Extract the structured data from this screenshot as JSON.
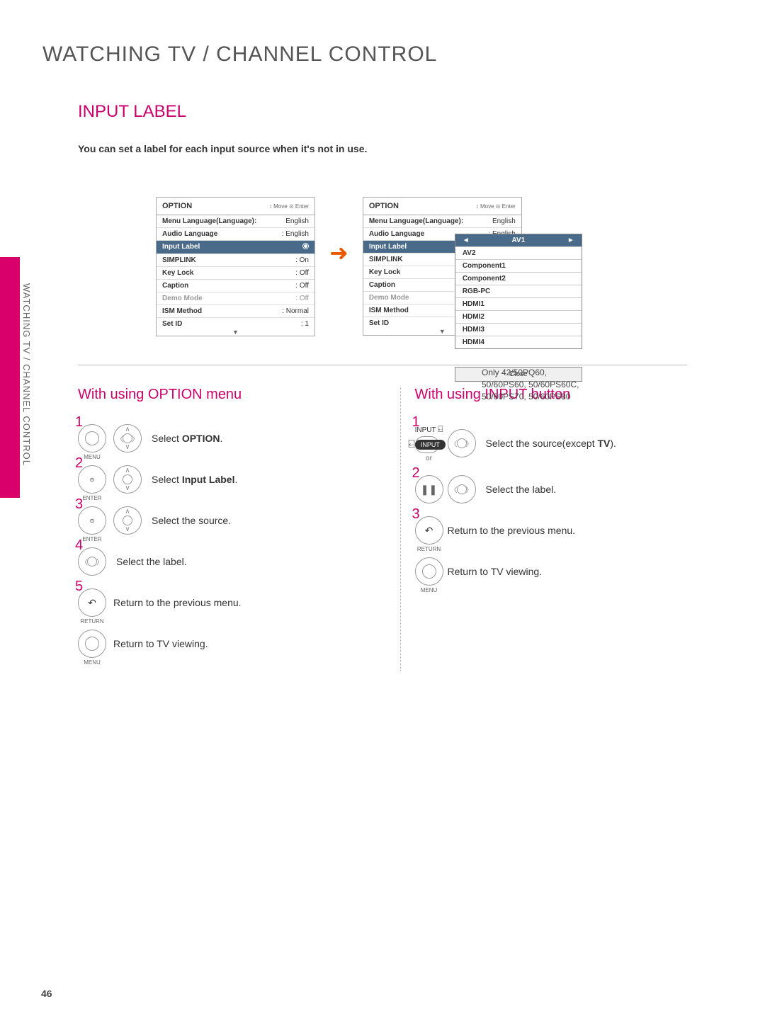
{
  "page_number": "46",
  "heading": "WATCHING TV / CHANNEL CONTROL",
  "section_title": "INPUT LABEL",
  "intro": "You can set a label for each input source when it's not in use.",
  "side_label": "WATCHING TV / CHANNEL CONTROL",
  "menu_left": {
    "title": "OPTION",
    "hints": "↕ Move   ⊙ Enter",
    "rows": [
      {
        "k": "Menu Language(Language):",
        "v": "English"
      },
      {
        "k": "Audio Language",
        "v": ": English"
      },
      {
        "k": "Input Label",
        "v": "●",
        "hl": true
      },
      {
        "k": "SIMPLINK",
        "v": ": On"
      },
      {
        "k": "Key Lock",
        "v": ": Off"
      },
      {
        "k": "Caption",
        "v": ": Off"
      },
      {
        "k": "Demo Mode",
        "v": ": Off",
        "gray": true
      },
      {
        "k": "ISM Method",
        "v": ": Normal"
      },
      {
        "k": "Set ID",
        "v": ": 1"
      }
    ]
  },
  "menu_right": {
    "title": "OPTION",
    "hints": "↕ Move   ⊙ Enter",
    "rows": [
      {
        "k": "Menu Language(Language):",
        "v": "English"
      },
      {
        "k": "Audio Language",
        "v": ": English"
      },
      {
        "k": "Input Label",
        "v": "",
        "hl": true
      },
      {
        "k": "SIMPLINK",
        "v": ""
      },
      {
        "k": "Key Lock",
        "v": ""
      },
      {
        "k": "Caption",
        "v": ""
      },
      {
        "k": "Demo Mode",
        "v": "",
        "gray": true
      },
      {
        "k": "ISM Method",
        "v": ""
      },
      {
        "k": "Set ID",
        "v": ""
      }
    ]
  },
  "popup_items": [
    "AV1",
    "AV2",
    "Component1",
    "Component2",
    "RGB-PC",
    "HDMI1",
    "HDMI2",
    "HDMI3",
    "HDMI4"
  ],
  "popup_selected": "AV1",
  "popup_close": "Close",
  "note_lines": [
    "Only 42/50PQ60,",
    "50/60PS60, 50/60PS60C,",
    "50/60PS70, 50/60PS80"
  ],
  "col_left_title": "With using OPTION menu",
  "col_right_title": "With using INPUT button",
  "steps_left": [
    {
      "n": "1",
      "btn": "MENU",
      "dpad": "full",
      "text_pre": "Select ",
      "text_bold": "OPTION",
      "text_post": "."
    },
    {
      "n": "2",
      "btn": "ENTER",
      "dpad": "ud",
      "text_pre": "Select ",
      "text_bold": "Input Label",
      "text_post": "."
    },
    {
      "n": "3",
      "btn": "ENTER",
      "dpad": "ud",
      "text_pre": "Select the source.",
      "text_bold": "",
      "text_post": ""
    },
    {
      "n": "4",
      "btn": "",
      "dpad": "lr",
      "text_pre": "Select the label.",
      "text_bold": "",
      "text_post": ""
    },
    {
      "n": "5",
      "btn": "RETURN",
      "dpad": "",
      "text_pre": "Return to the previous menu.",
      "text_bold": "",
      "text_post": ""
    },
    {
      "n": "",
      "btn": "MENU",
      "dpad": "",
      "text_pre": "Return to TV viewing.",
      "text_bold": "",
      "text_post": ""
    }
  ],
  "steps_right": [
    {
      "n": "1",
      "text_pre": "Select the source(except ",
      "text_bold": "TV",
      "text_post": ")."
    },
    {
      "n": "2",
      "text_pre": "Select the label.",
      "text_bold": "",
      "text_post": ""
    },
    {
      "n": "3",
      "btn": "RETURN",
      "text_pre": "Return to the previous menu.",
      "text_bold": "",
      "text_post": ""
    },
    {
      "n": "",
      "btn": "MENU",
      "text_pre": "Return to TV viewing.",
      "text_bold": "",
      "text_post": ""
    }
  ],
  "input_label_small": "INPUT",
  "input_pill": "INPUT",
  "or_text": "or",
  "colors": {
    "accent": "#c9006b",
    "highlight": "#4a6a8a",
    "arrow": "#e85a00"
  }
}
